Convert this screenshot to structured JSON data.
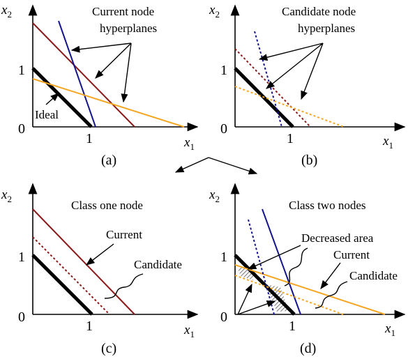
{
  "axes": {
    "x_label": "x",
    "x_sub": "1",
    "y_label": "x",
    "y_sub": "2"
  },
  "ticks": {
    "zero": "0",
    "one_x": "1",
    "one_y": "1"
  },
  "panels": {
    "a": {
      "caption": "(a)",
      "title_line1": "Current node",
      "title_line2": "hyperplanes",
      "ideal_label": "Ideal"
    },
    "b": {
      "caption": "(b)",
      "title_line1": "Candidate node",
      "title_line2": "hyperplanes"
    },
    "c": {
      "caption": "(c)",
      "title": "Class one node",
      "current_label": "Current",
      "candidate_label": "Candidate"
    },
    "d": {
      "caption": "(d)",
      "title": "Class two nodes",
      "decreased_label": "Decreased area",
      "current_label": "Current",
      "candidate_label": "Candidate"
    }
  },
  "colors": {
    "dark_red": "#8b1a1a",
    "navy": "#14148c",
    "orange": "#f5a623",
    "black": "#000000",
    "hatch": "#555555"
  }
}
